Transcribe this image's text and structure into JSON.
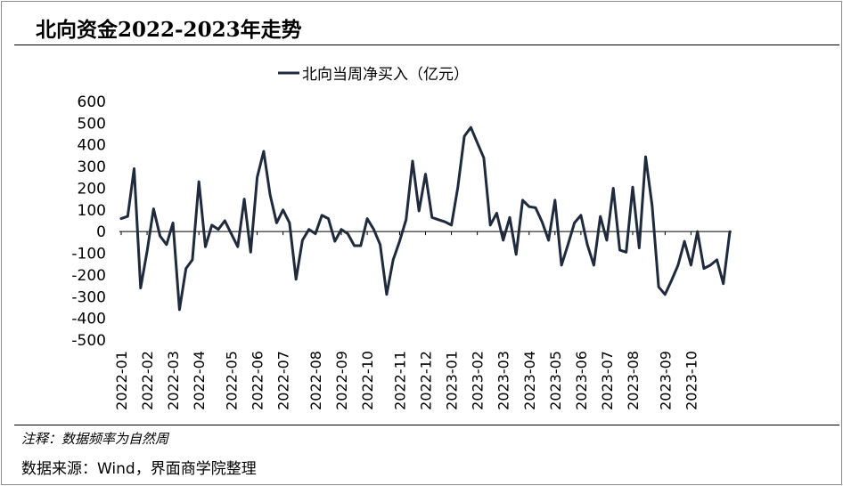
{
  "header": {
    "title": "北向资金2022-2023年走势"
  },
  "footer": {
    "note": "注释：数据频率为自然周",
    "source": "数据来源：Wind，界面商学院整理"
  },
  "chart_data": {
    "type": "line",
    "title": "北向资金2022-2023年走势",
    "xlabel": "",
    "ylabel": "",
    "ylim": [
      -500,
      600
    ],
    "y_ticks": [
      600,
      500,
      400,
      300,
      200,
      100,
      0,
      -100,
      -200,
      -300,
      -400,
      -500
    ],
    "y_tick_labels": [
      "600",
      "500",
      "400",
      "300",
      "200",
      "100",
      "0",
      "-100",
      "-200",
      "-300",
      "-400",
      "-500"
    ],
    "x_tick_labels": [
      "2022-01",
      "2022-02",
      "2022-03",
      "2022-04",
      "2022-05",
      "2022-06",
      "2022-07",
      "2022-08",
      "2022-09",
      "2022-10",
      "2022-11",
      "2022-12",
      "2023-01",
      "2023-02",
      "2023-03",
      "2023-04",
      "2023-05",
      "2023-06",
      "2023-07",
      "2023-08",
      "2023-09",
      "2023-10"
    ],
    "x_tick_index": [
      0,
      4,
      8,
      12,
      17,
      21,
      25,
      30,
      34,
      38,
      43,
      47,
      51,
      55,
      59,
      63,
      67,
      71,
      75,
      79,
      84,
      88
    ],
    "color": "#1f2a3c",
    "legend": "top-center",
    "grid": false,
    "series": [
      {
        "name": "北向当周净买入（亿元）",
        "values": [
          60,
          70,
          290,
          -260,
          -90,
          105,
          -20,
          -60,
          40,
          -360,
          -170,
          -130,
          230,
          -70,
          30,
          10,
          50,
          -10,
          -70,
          150,
          -95,
          250,
          370,
          170,
          40,
          100,
          40,
          -220,
          -40,
          10,
          -10,
          75,
          60,
          -45,
          10,
          -10,
          -65,
          -65,
          60,
          10,
          -60,
          -290,
          -130,
          -45,
          55,
          325,
          95,
          265,
          65,
          55,
          45,
          30,
          205,
          440,
          480,
          410,
          340,
          30,
          85,
          -40,
          65,
          -105,
          145,
          115,
          110,
          45,
          -40,
          145,
          -155,
          -60,
          40,
          75,
          -60,
          -155,
          70,
          -40,
          200,
          -85,
          -95,
          205,
          -75,
          345,
          120,
          -255,
          -290,
          -225,
          -155,
          -45,
          -155,
          0,
          -170,
          -155,
          -130,
          -240,
          0
        ]
      }
    ]
  }
}
